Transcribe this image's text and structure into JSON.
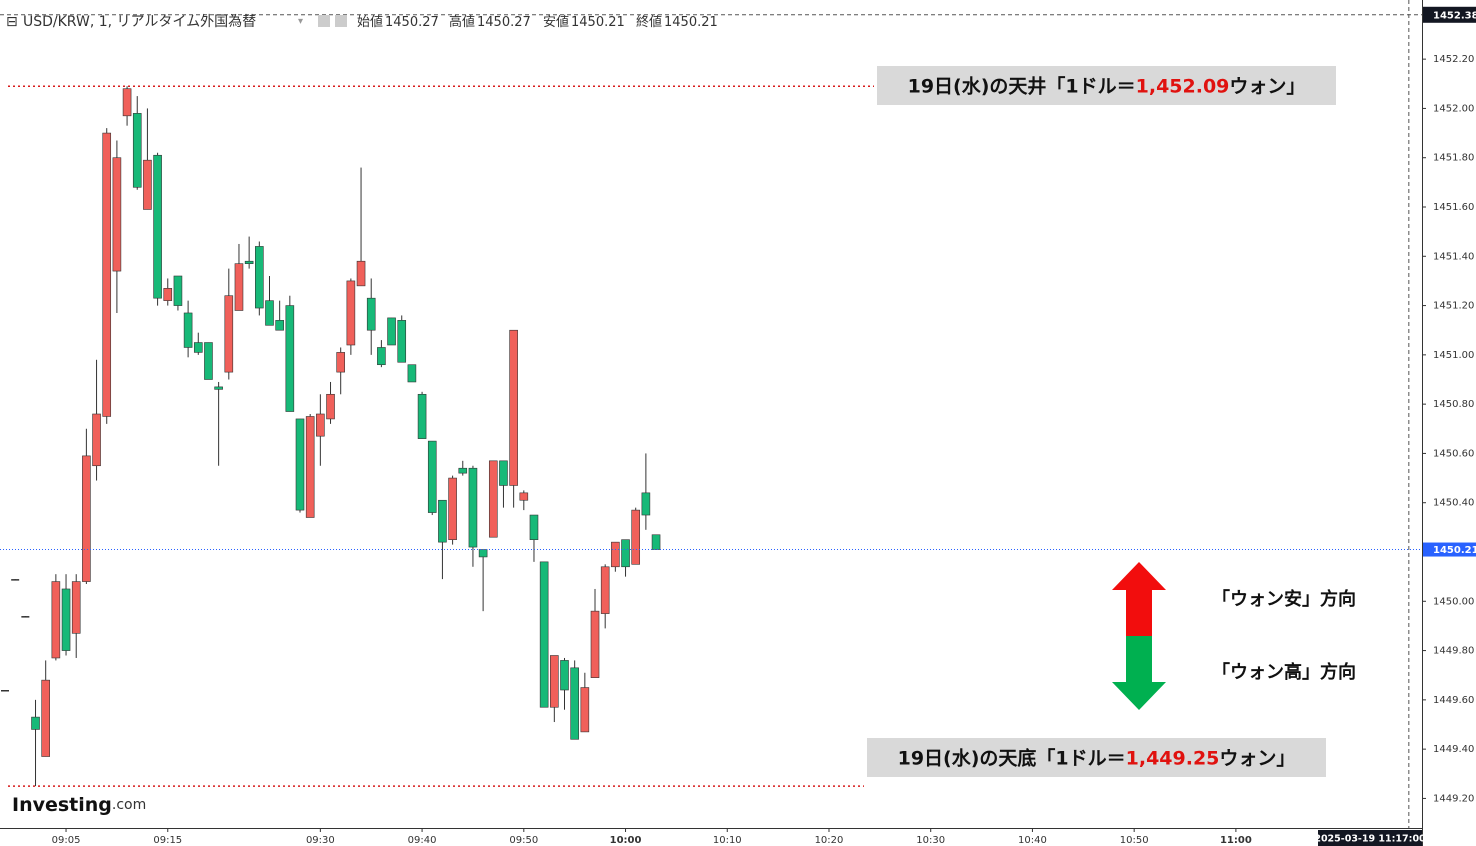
{
  "chart_data": {
    "type": "candlestick",
    "header": {
      "title": "USD/KRW, 1, リアルタイム外国為替",
      "open_label": "始値",
      "high_label": "高値",
      "low_label": "安値",
      "close_label": "終値"
    },
    "x": [
      "08:59",
      "09:00",
      "09:01",
      "09:02",
      "09:03",
      "09:04",
      "09:05",
      "09:06",
      "09:07",
      "09:08",
      "09:09",
      "09:10",
      "09:11",
      "09:12",
      "09:13",
      "09:14",
      "09:15",
      "09:16",
      "09:17",
      "09:18",
      "09:19",
      "09:20",
      "09:21",
      "09:22",
      "09:23",
      "09:24",
      "09:25",
      "09:26",
      "09:27",
      "09:28",
      "09:29",
      "09:30",
      "09:31",
      "09:32",
      "09:33",
      "09:34",
      "09:35",
      "09:36",
      "09:37",
      "09:38",
      "09:39",
      "09:40",
      "09:41",
      "09:42",
      "09:43",
      "09:44",
      "09:45",
      "09:46",
      "09:47",
      "09:48",
      "09:49",
      "09:50",
      "09:51",
      "09:52",
      "09:53",
      "09:54",
      "09:55",
      "09:56",
      "09:57",
      "09:58",
      "09:59",
      "10:00",
      "10:01",
      "10:02",
      "10:03"
    ],
    "open": [
      1449.64,
      1450.09,
      1449.94,
      1449.53,
      1449.37,
      1449.77,
      1450.05,
      1449.87,
      1450.08,
      1450.55,
      1450.75,
      1451.34,
      1451.97,
      1451.98,
      1451.59,
      1451.81,
      1451.22,
      1451.32,
      1451.17,
      1451.05,
      1451.05,
      1450.87,
      1450.93,
      1451.18,
      1451.38,
      1451.44,
      1451.22,
      1451.14,
      1451.2,
      1450.74,
      1450.34,
      1450.67,
      1450.74,
      1450.93,
      1451.04,
      1451.28,
      1451.23,
      1451.03,
      1451.15,
      1451.14,
      1450.96,
      1450.84,
      1450.65,
      1450.41,
      1450.25,
      1450.54,
      1450.54,
      1450.21,
      1450.26,
      1450.57,
      1450.47,
      1450.41,
      1450.35,
      1450.16,
      1449.57,
      1449.76,
      1449.73,
      1449.47,
      1449.69,
      1449.95,
      1450.14,
      1450.25,
      1450.15,
      1450.44,
      1450.27
    ],
    "high": [
      1449.64,
      1450.09,
      1449.94,
      1449.6,
      1449.76,
      1450.11,
      1450.11,
      1450.11,
      1450.7,
      1450.98,
      1451.92,
      1451.87,
      1452.09,
      1452.05,
      1452.0,
      1451.82,
      1451.31,
      1451.32,
      1451.22,
      1451.09,
      1451.05,
      1450.89,
      1451.35,
      1451.45,
      1451.48,
      1451.46,
      1451.32,
      1451.22,
      1451.24,
      1450.74,
      1450.76,
      1450.84,
      1450.89,
      1451.03,
      1451.31,
      1451.76,
      1451.31,
      1451.06,
      1451.15,
      1451.16,
      1450.96,
      1450.85,
      1450.65,
      1450.41,
      1450.51,
      1450.57,
      1450.55,
      1450.21,
      1450.57,
      1450.57,
      1451.1,
      1450.45,
      1450.35,
      1450.16,
      1449.78,
      1449.77,
      1449.76,
      1449.71,
      1450.05,
      1450.15,
      1450.24,
      1450.25,
      1450.38,
      1450.6,
      1450.27
    ],
    "low": [
      1449.64,
      1450.09,
      1449.94,
      1449.25,
      1449.37,
      1449.76,
      1449.78,
      1449.77,
      1450.07,
      1450.49,
      1450.72,
      1451.17,
      1451.93,
      1451.67,
      1451.59,
      1451.2,
      1451.2,
      1451.18,
      1450.99,
      1451.0,
      1450.9,
      1450.55,
      1450.9,
      1451.18,
      1451.35,
      1451.16,
      1451.12,
      1451.1,
      1450.77,
      1450.36,
      1450.34,
      1450.55,
      1450.72,
      1450.84,
      1451.0,
      1451.28,
      1451.0,
      1450.95,
      1451.04,
      1450.97,
      1450.89,
      1450.66,
      1450.35,
      1450.09,
      1450.23,
      1450.51,
      1450.14,
      1449.96,
      1450.26,
      1450.38,
      1450.38,
      1450.37,
      1450.16,
      1449.57,
      1449.51,
      1449.56,
      1449.44,
      1449.47,
      1449.69,
      1449.89,
      1450.12,
      1450.1,
      1450.15,
      1450.29,
      1450.21
    ],
    "close": [
      1449.64,
      1450.09,
      1449.94,
      1449.48,
      1449.68,
      1450.08,
      1449.8,
      1450.08,
      1450.59,
      1450.76,
      1451.9,
      1451.8,
      1452.08,
      1451.68,
      1451.79,
      1451.23,
      1451.27,
      1451.2,
      1451.03,
      1451.01,
      1450.9,
      1450.86,
      1451.24,
      1451.37,
      1451.37,
      1451.19,
      1451.12,
      1451.1,
      1450.77,
      1450.37,
      1450.75,
      1450.76,
      1450.84,
      1451.01,
      1451.3,
      1451.38,
      1451.1,
      1450.96,
      1451.04,
      1450.97,
      1450.89,
      1450.66,
      1450.36,
      1450.24,
      1450.5,
      1450.52,
      1450.22,
      1450.18,
      1450.57,
      1450.47,
      1451.1,
      1450.44,
      1450.25,
      1449.57,
      1449.78,
      1449.64,
      1449.44,
      1449.65,
      1449.96,
      1450.14,
      1450.24,
      1450.14,
      1450.37,
      1450.35,
      1450.21
    ],
    "up_color": "#f0605a",
    "down_color": "#17b978",
    "doji_color": "#333333",
    "last_price_color": "#2962ff",
    "ylim": [
      1449.08,
      1452.44
    ],
    "yticks": [
      {
        "value": 1449.2,
        "label": "1449.20"
      },
      {
        "value": 1449.4,
        "label": "1449.40"
      },
      {
        "value": 1449.6,
        "label": "1449.60"
      },
      {
        "value": 1449.8,
        "label": "1449.80"
      },
      {
        "value": 1450,
        "label": "1450.00"
      },
      {
        "value": 1450.2,
        "label": "1450.20"
      },
      {
        "value": 1450.4,
        "label": "1450.40"
      },
      {
        "value": 1450.6,
        "label": "1450.60"
      },
      {
        "value": 1450.8,
        "label": "1450.80"
      },
      {
        "value": 1451,
        "label": "1451.00"
      },
      {
        "value": 1451.2,
        "label": "1451.20"
      },
      {
        "value": 1451.4,
        "label": "1451.40"
      },
      {
        "value": 1451.6,
        "label": "1451.60"
      },
      {
        "value": 1451.8,
        "label": "1451.80"
      },
      {
        "value": 1452,
        "label": "1452.00"
      },
      {
        "value": 1452.2,
        "label": "1452.20"
      }
    ],
    "xlim": [
      "08:59",
      "11:18"
    ],
    "xticks": [
      "09:05",
      "09:15",
      "09:30",
      "09:40",
      "09:50",
      "10:00",
      "10:10",
      "10:20",
      "10:30",
      "10:40",
      "10:50",
      "11:00"
    ],
    "crosshair": {
      "time": "2025-03-19 11:17:00",
      "price": {
        "value": 1452.38,
        "label": "1452.38"
      }
    },
    "annotations": [
      {
        "prefix": "19日(水)の天井「1ドル＝",
        "value": 1452.09,
        "value_label": "1,452.09",
        "suffix": "ウォン」"
      },
      {
        "prefix": "19日(水)の天底「1ドル＝",
        "value": 1449.25,
        "value_label": "1,449.25",
        "suffix": "ウォン」"
      }
    ],
    "legend": {
      "up": "「ウォン安」方向",
      "down": "「ウォン高」方向"
    },
    "logo": {
      "name": "Investing",
      "suffix": ".com"
    }
  }
}
